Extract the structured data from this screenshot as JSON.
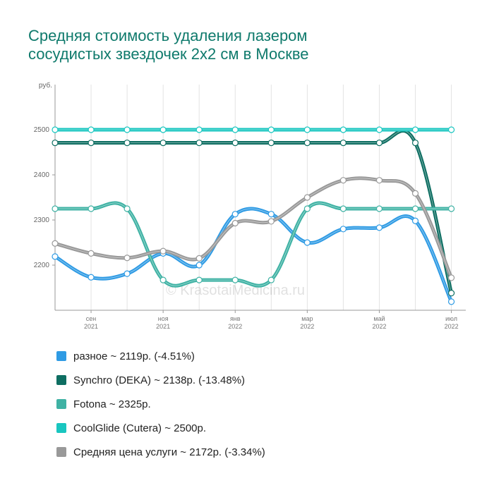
{
  "title_line1": "Средняя стоимость удаления лазером",
  "title_line2": "сосудистых звездочек 2x2 см в Москве",
  "watermark": "© KrasotaiMedicina.ru",
  "chart_data": {
    "type": "line",
    "title": "Средняя стоимость удаления лазером сосудистых звездочек 2x2 см в Москве",
    "ylabel": "руб.",
    "ylim": [
      2100,
      2600
    ],
    "y_ticks": [
      2200,
      2300,
      2400,
      2500
    ],
    "y_tick_labels": [
      "2200",
      "2300",
      "2400",
      "2500"
    ],
    "xlim": [
      0,
      11.4
    ],
    "x": [
      0,
      1,
      2,
      3,
      4,
      5,
      6,
      7,
      8,
      9,
      10,
      11
    ],
    "x_ticks": [
      {
        "pos": 1,
        "month": "сен",
        "year": "2021"
      },
      {
        "pos": 3,
        "month": "ноя",
        "year": "2021"
      },
      {
        "pos": 5,
        "month": "янв",
        "year": "2022"
      },
      {
        "pos": 7,
        "month": "мар",
        "year": "2022"
      },
      {
        "pos": 9,
        "month": "май",
        "year": "2022"
      },
      {
        "pos": 11,
        "month": "июл",
        "year": "2022"
      }
    ],
    "grid": "vertical",
    "series": [
      {
        "name": "разное",
        "legend": "разное ~ 2119р. (-4.51%)",
        "color": "#2f9be4",
        "values": [
          2219,
          2173,
          2181,
          2226,
          2200,
          2313,
          2313,
          2250,
          2280,
          2283,
          2298,
          2119
        ]
      },
      {
        "name": "Synchro (DEKA)",
        "legend": "Synchro (DEKA) ~ 2138р. (-13.48%)",
        "color": "#0e6e62",
        "values": [
          2471,
          2471,
          2471,
          2471,
          2471,
          2471,
          2471,
          2471,
          2471,
          2471,
          2471,
          2138
        ]
      },
      {
        "name": "Fotona",
        "legend": "Fotona ~ 2325р.",
        "color": "#3fb2a4",
        "values": [
          2325,
          2325,
          2325,
          2167,
          2167,
          2167,
          2167,
          2325,
          2325,
          2325,
          2325,
          2325
        ]
      },
      {
        "name": "CoolGlide (Cutera)",
        "legend": "CoolGlide (Cutera) ~ 2500р.",
        "color": "#19c6c0",
        "values": [
          2500,
          2500,
          2500,
          2500,
          2500,
          2500,
          2500,
          2500,
          2500,
          2500,
          2500,
          2500
        ]
      },
      {
        "name": "Средняя цена услуги",
        "legend": "Средняя цена услуги ~ 2172р. (-3.34%)",
        "color": "#999999",
        "values": [
          2248,
          2226,
          2216,
          2231,
          2215,
          2293,
          2297,
          2350,
          2388,
          2388,
          2359,
          2172
        ]
      }
    ]
  }
}
